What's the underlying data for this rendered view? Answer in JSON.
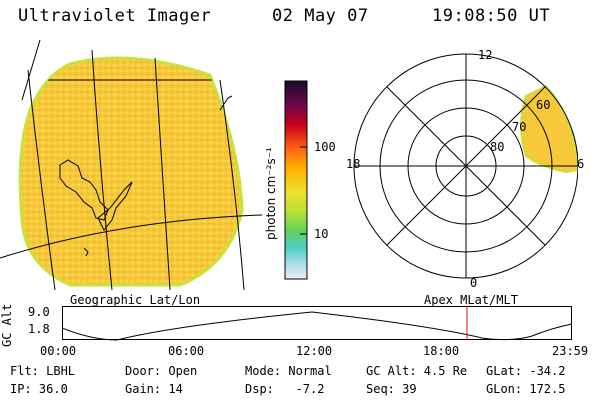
{
  "header": {
    "instrument": "Ultraviolet Imager",
    "date": "02 May 07",
    "time": "19:08:50 UT"
  },
  "geo_map": {
    "label": "Geographic Lat/Lon"
  },
  "colorbar": {
    "unit_label": "photon cm⁻²s⁻¹",
    "tick_100": "100",
    "tick_10": "10",
    "colors": {
      "top": "#1a0a2e",
      "high": "#c8001e",
      "mid": "#ffb000",
      "low_mid": "#b8e22e",
      "low": "#48d0c0",
      "bottom": "#e9eef7"
    }
  },
  "polar_map": {
    "label": "Apex MLat/MLT",
    "mlt_labels": {
      "top": "12",
      "left": "18",
      "bottom": "0",
      "right": "6"
    },
    "lat_labels": [
      "80",
      "70",
      "60"
    ]
  },
  "gc_plot": {
    "ylabel": "GC Alt",
    "ytick_top": "9.0",
    "ytick_bottom": "1.8",
    "xticks": [
      "00:00",
      "06:00",
      "12:00",
      "18:00",
      "23:59"
    ],
    "current_time_fraction": 0.795,
    "marker_color": "#e01010"
  },
  "footer": {
    "row1": {
      "flt": "Flt: LBHL",
      "door": "Door: Open",
      "mode": "Mode: Normal",
      "gcalt": "GC Alt: 4.5 Re",
      "glat": "GLat: -34.2"
    },
    "row2": {
      "ip": "IP: 36.0",
      "gain": "Gain: 14",
      "dsp": "Dsp:   -7.2",
      "seq": "Seq: 39",
      "glon": "GLon: 172.5"
    }
  },
  "image_colors": {
    "disk_fill": "#f5c430",
    "disk_fill_light": "#f9d84a",
    "disk_edge": "#c9e23a"
  }
}
